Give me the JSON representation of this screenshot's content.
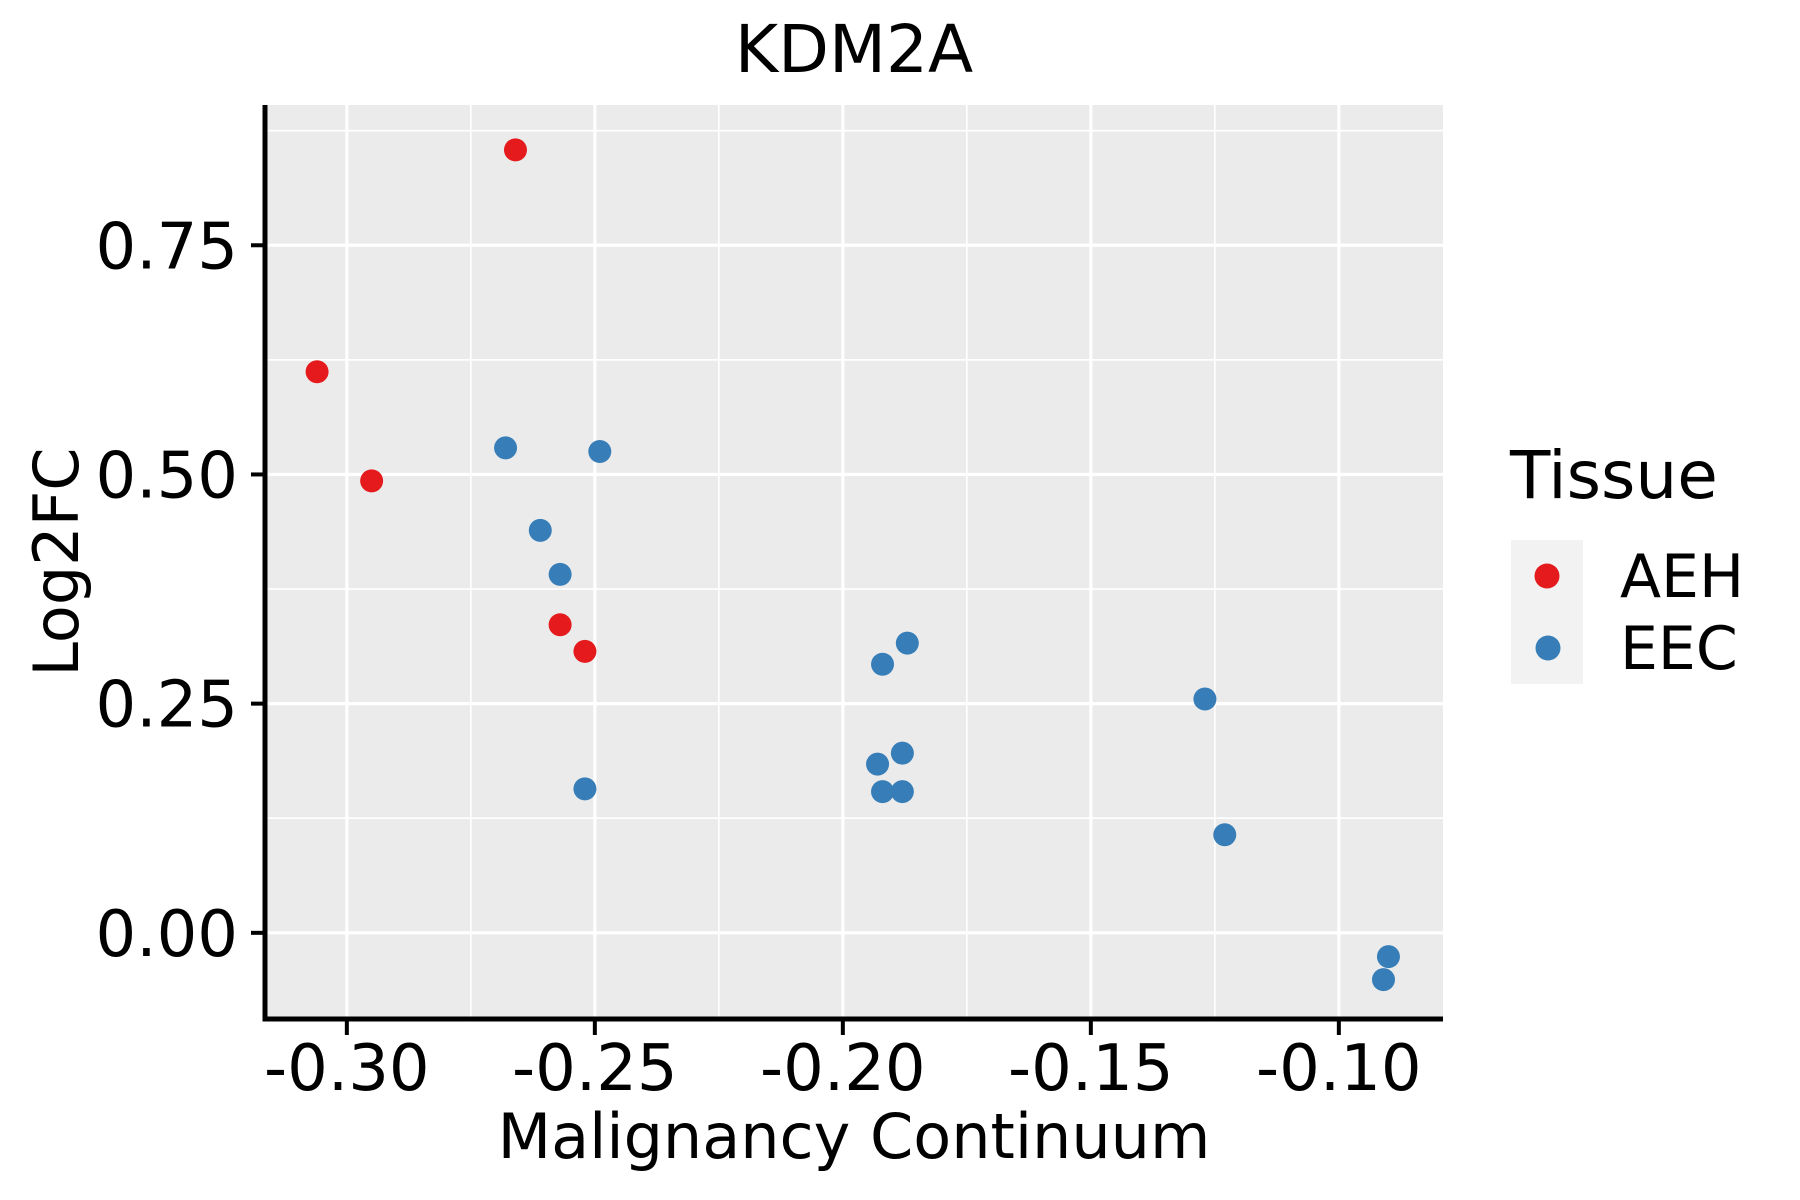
{
  "title": "KDM2A",
  "axes": {
    "x_label": "Malignancy Continuum",
    "y_label": "Log2FC"
  },
  "legend": {
    "title": "Tissue",
    "entries": [
      {
        "label": "AEH",
        "color": "#E41A1C"
      },
      {
        "label": "EEC",
        "color": "#377EB8"
      }
    ]
  },
  "chart_data": {
    "type": "scatter",
    "title": "KDM2A",
    "xlabel": "Malignancy Continuum",
    "ylabel": "Log2FC",
    "xlim": [
      -0.3165,
      -0.079
    ],
    "ylim": [
      -0.094,
      0.903
    ],
    "x_ticks": [
      -0.3,
      -0.25,
      -0.2,
      -0.15,
      -0.1
    ],
    "x_tick_labels": [
      "-0.30",
      "-0.25",
      "-0.20",
      "-0.15",
      "-0.10"
    ],
    "x_minor_ticks": [
      -0.275,
      -0.225,
      -0.175,
      -0.125
    ],
    "y_ticks": [
      0.0,
      0.25,
      0.5,
      0.75
    ],
    "y_tick_labels": [
      "0.00",
      "0.25",
      "0.50",
      "0.75"
    ],
    "y_minor_ticks": [
      0.125,
      0.375,
      0.625,
      0.875
    ],
    "grid": "major+minor",
    "legend_position": "right",
    "legend_title": "Tissue",
    "series": [
      {
        "name": "AEH",
        "color": "#E41A1C",
        "points": [
          [
            -0.266,
            0.854
          ],
          [
            -0.306,
            0.612
          ],
          [
            -0.295,
            0.493
          ],
          [
            -0.257,
            0.336
          ],
          [
            -0.252,
            0.307
          ]
        ]
      },
      {
        "name": "EEC",
        "color": "#377EB8",
        "points": [
          [
            -0.268,
            0.529
          ],
          [
            -0.249,
            0.525
          ],
          [
            -0.261,
            0.439
          ],
          [
            -0.257,
            0.391
          ],
          [
            -0.252,
            0.157
          ],
          [
            -0.187,
            0.316
          ],
          [
            -0.192,
            0.293
          ],
          [
            -0.188,
            0.196
          ],
          [
            -0.193,
            0.184
          ],
          [
            -0.192,
            0.154
          ],
          [
            -0.188,
            0.154
          ],
          [
            -0.127,
            0.255
          ],
          [
            -0.123,
            0.107
          ],
          [
            -0.09,
            -0.026
          ],
          [
            -0.091,
            -0.051
          ]
        ]
      }
    ],
    "style": {
      "panel_bg": "#EBEBEB",
      "grid_color": "#FFFFFF",
      "axis_line_color": "#000000",
      "text_color": "#000000",
      "legend_key_bg": "#F2F2F2",
      "point_radius": 11.5,
      "legend_point_radius": 12.5
    }
  }
}
